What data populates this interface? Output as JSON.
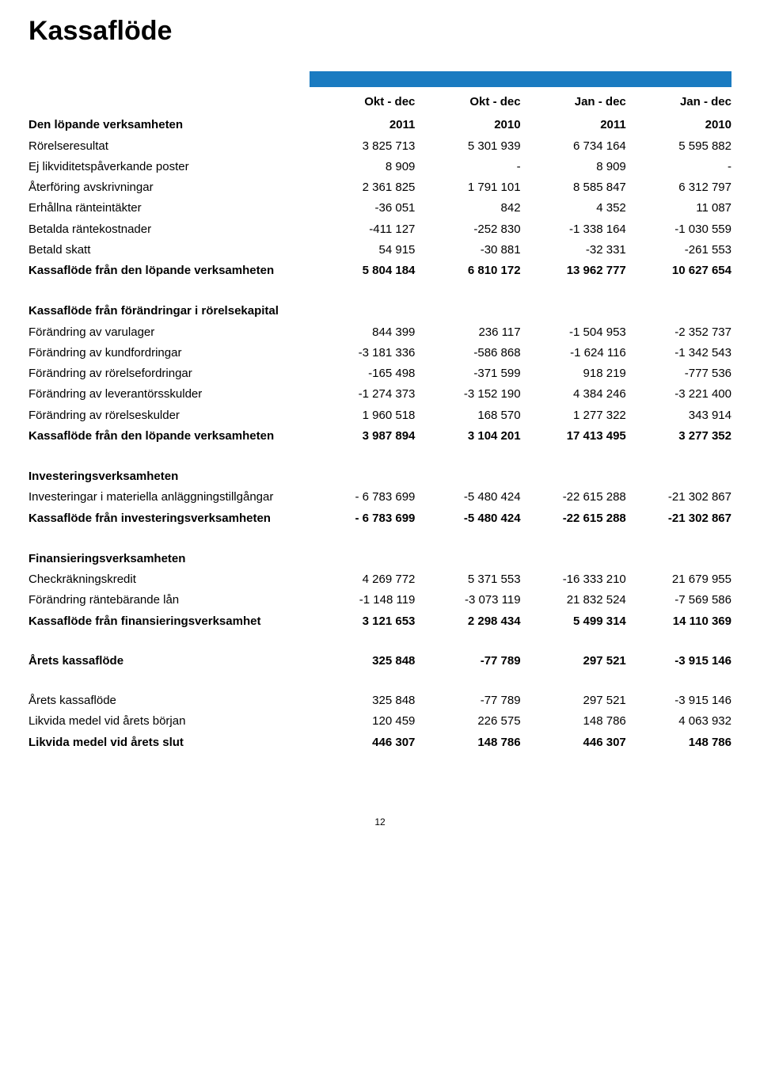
{
  "title": "Kassaflöde",
  "colors": {
    "blue": "#1a7bc1",
    "text": "#000000",
    "bg": "#ffffff"
  },
  "cols": {
    "h1a": "Okt - dec",
    "h1b": "2011",
    "h2a": "Okt - dec",
    "h2b": "2010",
    "h3a": "Jan - dec",
    "h3b": "2011",
    "h4a": "Jan - dec",
    "h4b": "2010"
  },
  "s1": {
    "title": "Den löpande verksamheten",
    "r1": {
      "l": "Rörelseresultat",
      "c1": "3 825 713",
      "c2": "5 301 939",
      "c3": "6 734 164",
      "c4": "5 595 882"
    },
    "r2": {
      "l": "Ej likviditetspåverkande poster",
      "c1": "8 909",
      "c2": "-",
      "c3": "8 909",
      "c4": "-"
    },
    "r3": {
      "l": "Återföring avskrivningar",
      "c1": "2 361 825",
      "c2": "1 791 101",
      "c3": "8 585 847",
      "c4": "6 312 797"
    },
    "r4": {
      "l": "Erhållna ränteintäkter",
      "c1": "-36 051",
      "c2": "842",
      "c3": "4 352",
      "c4": "11 087"
    },
    "r5": {
      "l": "Betalda räntekostnader",
      "c1": "-411 127",
      "c2": "-252 830",
      "c3": "-1 338 164",
      "c4": "-1 030 559"
    },
    "r6": {
      "l": "Betald skatt",
      "c1": "54 915",
      "c2": "-30 881",
      "c3": "-32 331",
      "c4": "-261 553"
    },
    "sum": {
      "l": "Kassaflöde från den löpande verksamheten",
      "c1": "5 804 184",
      "c2": "6 810 172",
      "c3": "13 962 777",
      "c4": "10 627 654"
    }
  },
  "s2": {
    "title": "Kassaflöde från förändringar i rörelsekapital",
    "r1": {
      "l": "Förändring av varulager",
      "c1": "844 399",
      "c2": "236 117",
      "c3": "-1 504 953",
      "c4": "-2 352 737"
    },
    "r2": {
      "l": "Förändring av kundfordringar",
      "c1": "-3 181 336",
      "c2": "-586 868",
      "c3": "-1 624 116",
      "c4": "-1 342 543"
    },
    "r3": {
      "l": "Förändring av rörelsefordringar",
      "c1": "-165 498",
      "c2": "-371 599",
      "c3": "918 219",
      "c4": "-777 536"
    },
    "r4": {
      "l": "Förändring av leverantörsskulder",
      "c1": "-1 274 373",
      "c2": "-3 152 190",
      "c3": "4 384 246",
      "c4": "-3 221 400"
    },
    "r5": {
      "l": "Förändring av rörelseskulder",
      "c1": "1 960 518",
      "c2": "168 570",
      "c3": "1 277 322",
      "c4": "343 914"
    },
    "sum": {
      "l": "Kassaflöde från den löpande verksamheten",
      "c1": "3 987 894",
      "c2": "3 104 201",
      "c3": "17 413 495",
      "c4": "3 277 352"
    }
  },
  "s3": {
    "title": "Investeringsverksamheten",
    "r1": {
      "l": "Investeringar i materiella anläggningstillgångar",
      "c1": "- 6 783 699",
      "c2": "-5 480 424",
      "c3": "-22 615 288",
      "c4": "-21 302 867"
    },
    "sum": {
      "l": "Kassaflöde från investeringsverksamheten",
      "c1": "- 6 783 699",
      "c2": "-5 480 424",
      "c3": "-22 615 288",
      "c4": "-21 302 867"
    }
  },
  "s4": {
    "title": "Finansieringsverksamheten",
    "r1": {
      "l": "Checkräkningskredit",
      "c1": "4 269 772",
      "c2": "5 371 553",
      "c3": "-16 333 210",
      "c4": "21 679 955"
    },
    "r2": {
      "l": "Förändring räntebärande lån",
      "c1": "-1 148 119",
      "c2": "-3 073 119",
      "c3": "21 832 524",
      "c4": "-7 569 586"
    },
    "sum": {
      "l": "Kassaflöde från finansieringsverksamhet",
      "c1": "3 121 653",
      "c2": "2 298 434",
      "c3": "5 499 314",
      "c4": "14 110 369"
    }
  },
  "total": {
    "l": "Årets kassaflöde",
    "c1": "325 848",
    "c2": "-77 789",
    "c3": "297 521",
    "c4": "-3 915 146"
  },
  "s5": {
    "r1": {
      "l": "Årets kassaflöde",
      "c1": "325 848",
      "c2": "-77 789",
      "c3": "297 521",
      "c4": "-3 915 146"
    },
    "r2": {
      "l": "Likvida medel vid årets början",
      "c1": "120 459",
      "c2": "226 575",
      "c3": "148 786",
      "c4": "4 063 932"
    },
    "sum": {
      "l": "Likvida medel vid årets slut",
      "c1": "446 307",
      "c2": "148 786",
      "c3": "446 307",
      "c4": "148 786"
    }
  },
  "page": "12"
}
